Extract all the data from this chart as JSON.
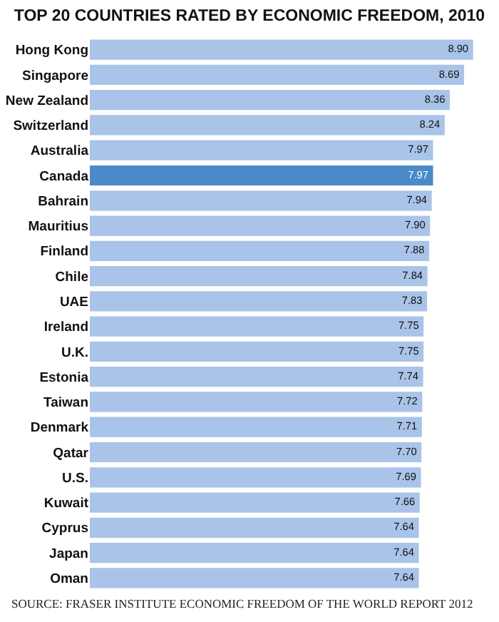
{
  "chart_data": {
    "type": "bar",
    "orientation": "horizontal",
    "legend": false,
    "title": "TOP 20 COUNTRIES RATED BY ECONOMIC FREEDOM, 2010",
    "categories": [
      "Hong Kong",
      "Singapore",
      "New Zealand",
      "Switzerland",
      "Australia",
      "Canada",
      "Bahrain",
      "Mauritius",
      "Finland",
      "Chile",
      "UAE",
      "Ireland",
      "U.K.",
      "Estonia",
      "Taiwan",
      "Denmark",
      "Qatar",
      "U.S.",
      "Kuwait",
      "Cyprus",
      "Japan",
      "Oman"
    ],
    "values": [
      8.9,
      8.69,
      8.36,
      8.24,
      7.97,
      7.97,
      7.94,
      7.9,
      7.88,
      7.84,
      7.83,
      7.75,
      7.75,
      7.74,
      7.72,
      7.71,
      7.7,
      7.69,
      7.66,
      7.64,
      7.64,
      7.64
    ],
    "value_labels": [
      "8.90",
      "8.69",
      "8.36",
      "8.24",
      "7.97",
      "7.97",
      "7.94",
      "7.90",
      "7.88",
      "7.84",
      "7.83",
      "7.75",
      "7.75",
      "7.74",
      "7.72",
      "7.71",
      "7.70",
      "7.69",
      "7.66",
      "7.64",
      "7.64",
      "7.64"
    ],
    "colors": [
      "#a9c4e8",
      "#a9c4e8",
      "#a9c4e8",
      "#a9c4e8",
      "#a9c4e8",
      "#4a8ac9",
      "#a9c4e8",
      "#a9c4e8",
      "#a9c4e8",
      "#a9c4e8",
      "#a9c4e8",
      "#a9c4e8",
      "#a9c4e8",
      "#a9c4e8",
      "#a9c4e8",
      "#a9c4e8",
      "#a9c4e8",
      "#a9c4e8",
      "#a9c4e8",
      "#a9c4e8",
      "#a9c4e8",
      "#a9c4e8"
    ],
    "annotations": [
      "SOURCE: FRASER INSTITUTE ECONOMIC FREEDOM OF THE WORLD REPORT 2012"
    ]
  }
}
